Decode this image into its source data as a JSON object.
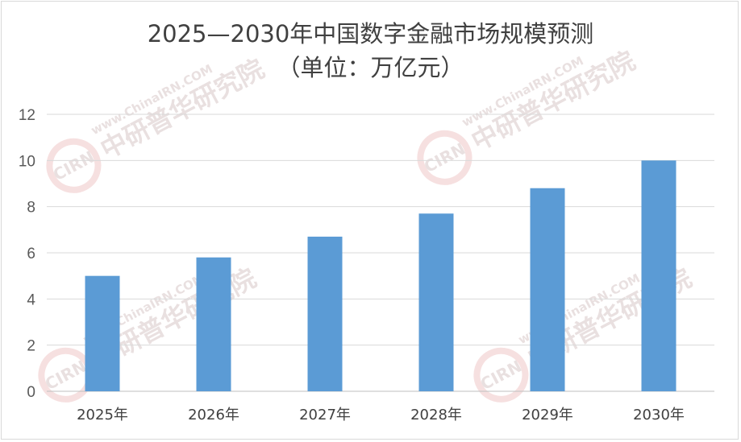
{
  "chart_data": {
    "type": "bar",
    "title": "2025—2030年中国数字金融市场规模预测",
    "subtitle": "（单位：万亿元）",
    "categories": [
      "2025年",
      "2026年",
      "2027年",
      "2028年",
      "2029年",
      "2030年"
    ],
    "values": [
      5.0,
      5.8,
      6.7,
      7.7,
      8.8,
      10.0
    ],
    "ylim": [
      0,
      12
    ],
    "yticks": [
      0,
      2,
      4,
      6,
      8,
      10,
      12
    ],
    "grid": true,
    "legend": "none",
    "bar_color": "#5b9bd5",
    "grid_color": "#d9d9d9"
  },
  "watermark": {
    "brand": "中研普华研究院",
    "url": "www.ChinaIRN.COM",
    "logo_text": "CIRN"
  }
}
